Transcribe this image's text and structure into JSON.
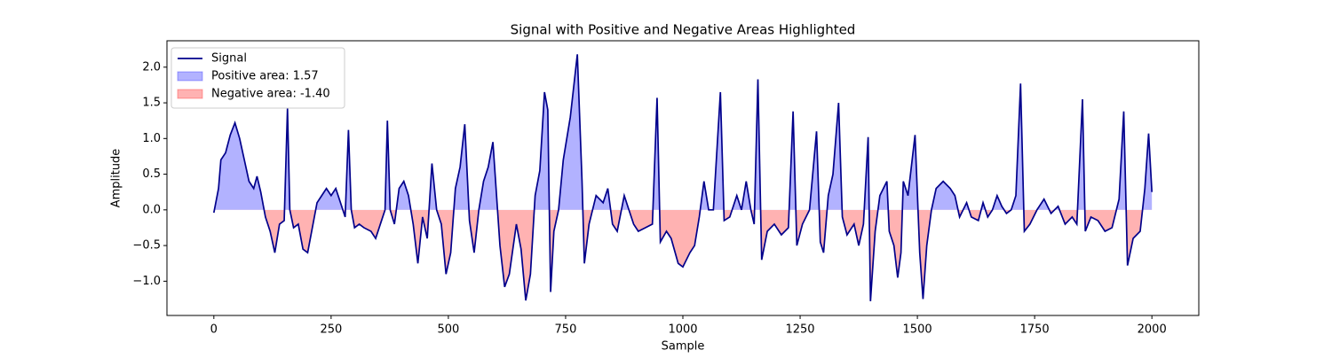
{
  "chart_data": {
    "type": "line",
    "title": "Signal with Positive and Negative Areas Highlighted",
    "x_label": "Sample",
    "y_label": "Amplitude",
    "x": [
      0,
      10,
      15,
      25,
      35,
      45,
      55,
      65,
      75,
      85,
      92,
      100,
      110,
      120,
      130,
      140,
      150,
      157,
      162,
      170,
      180,
      190,
      200,
      210,
      220,
      230,
      240,
      250,
      260,
      270,
      280,
      287,
      293,
      300,
      310,
      320,
      335,
      345,
      355,
      365,
      370,
      376,
      385,
      395,
      405,
      415,
      425,
      435,
      445,
      455,
      465,
      475,
      485,
      495,
      505,
      515,
      525,
      535,
      545,
      555,
      565,
      575,
      585,
      595,
      610,
      620,
      630,
      645,
      655,
      665,
      675,
      685,
      695,
      705,
      712,
      718,
      725,
      735,
      745,
      760,
      775,
      785,
      790,
      800,
      815,
      830,
      840,
      850,
      860,
      875,
      885,
      895,
      905,
      920,
      935,
      945,
      952,
      965,
      975,
      990,
      1000,
      1015,
      1025,
      1035,
      1045,
      1055,
      1065,
      1080,
      1088,
      1100,
      1115,
      1125,
      1135,
      1145,
      1152,
      1160,
      1168,
      1180,
      1195,
      1210,
      1225,
      1235,
      1243,
      1255,
      1270,
      1285,
      1293,
      1300,
      1310,
      1320,
      1332,
      1340,
      1350,
      1365,
      1375,
      1385,
      1395,
      1400,
      1410,
      1420,
      1435,
      1440,
      1450,
      1458,
      1465,
      1470,
      1480,
      1495,
      1505,
      1512,
      1520,
      1530,
      1540,
      1555,
      1570,
      1580,
      1590,
      1605,
      1615,
      1630,
      1640,
      1650,
      1660,
      1670,
      1680,
      1690,
      1700,
      1710,
      1720,
      1728,
      1740,
      1755,
      1770,
      1785,
      1800,
      1815,
      1830,
      1840,
      1852,
      1858,
      1870,
      1885,
      1900,
      1915,
      1930,
      1940,
      1948,
      1960,
      1975,
      1985,
      1993,
      2000
    ],
    "series": [
      {
        "name": "Signal",
        "color": "#00008b",
        "values": [
          -0.04,
          0.3,
          0.7,
          0.8,
          1.05,
          1.22,
          1.0,
          0.7,
          0.4,
          0.3,
          0.47,
          0.25,
          -0.1,
          -0.3,
          -0.6,
          -0.2,
          -0.15,
          1.42,
          0.0,
          -0.25,
          -0.2,
          -0.55,
          -0.6,
          -0.25,
          0.1,
          0.2,
          0.3,
          0.2,
          0.3,
          0.1,
          -0.1,
          1.12,
          0.0,
          -0.25,
          -0.2,
          -0.25,
          -0.3,
          -0.4,
          -0.2,
          0.0,
          1.25,
          0.0,
          -0.2,
          0.3,
          0.4,
          0.2,
          -0.2,
          -0.75,
          -0.1,
          -0.4,
          0.65,
          0.0,
          -0.2,
          -0.9,
          -0.6,
          0.3,
          0.6,
          1.2,
          -0.15,
          -0.6,
          0.0,
          0.4,
          0.6,
          0.95,
          -0.5,
          -1.08,
          -0.9,
          -0.2,
          -0.55,
          -1.27,
          -0.9,
          0.2,
          0.55,
          1.65,
          1.4,
          -1.15,
          -0.3,
          0.0,
          0.7,
          1.3,
          2.18,
          0.4,
          -0.75,
          -0.2,
          0.2,
          0.1,
          0.3,
          -0.2,
          -0.3,
          0.2,
          0.0,
          -0.2,
          -0.3,
          -0.25,
          -0.2,
          1.57,
          -0.45,
          -0.3,
          -0.4,
          -0.75,
          -0.8,
          -0.6,
          -0.5,
          -0.1,
          0.4,
          0.0,
          0.0,
          1.65,
          -0.15,
          -0.1,
          0.2,
          0.0,
          0.4,
          0.0,
          -0.2,
          1.83,
          -0.7,
          -0.3,
          -0.2,
          -0.35,
          -0.25,
          1.38,
          -0.5,
          -0.2,
          0.0,
          1.1,
          -0.45,
          -0.6,
          0.2,
          0.5,
          1.5,
          -0.1,
          -0.35,
          -0.2,
          -0.5,
          -0.2,
          1.02,
          -1.28,
          -0.3,
          0.2,
          0.4,
          -0.3,
          -0.5,
          -0.95,
          -0.6,
          0.4,
          0.2,
          1.05,
          -0.6,
          -1.25,
          -0.5,
          0.0,
          0.3,
          0.4,
          0.3,
          0.2,
          -0.1,
          0.1,
          -0.1,
          -0.15,
          0.1,
          -0.1,
          0.0,
          0.2,
          0.05,
          -0.05,
          0.0,
          0.2,
          1.77,
          -0.3,
          -0.2,
          0.0,
          0.15,
          -0.05,
          0.05,
          -0.2,
          -0.1,
          -0.2,
          1.55,
          -0.3,
          -0.1,
          -0.15,
          -0.3,
          -0.25,
          0.15,
          1.38,
          -0.78,
          -0.4,
          -0.3,
          0.3,
          1.07,
          0.25
        ]
      }
    ],
    "fills": [
      {
        "name": "Positive area: 1.57",
        "color": "#0000ff"
      },
      {
        "name": "Negative area: -1.40",
        "color": "#ff0000"
      }
    ],
    "xlim": [
      -100,
      2100
    ],
    "ylim": [
      -1.48,
      2.37
    ],
    "xticks": [
      0,
      250,
      500,
      750,
      1000,
      1250,
      1500,
      1750,
      2000
    ],
    "yticks": [
      {
        "value": -1,
        "label": "−1.0"
      },
      {
        "value": -0.5,
        "label": "−0.5"
      },
      {
        "value": 0,
        "label": "0.0"
      },
      {
        "value": 0.5,
        "label": "0.5"
      },
      {
        "value": 1,
        "label": "1.0"
      },
      {
        "value": 1.5,
        "label": "1.5"
      },
      {
        "value": 2,
        "label": "2.0"
      }
    ],
    "legend": "upper left"
  }
}
